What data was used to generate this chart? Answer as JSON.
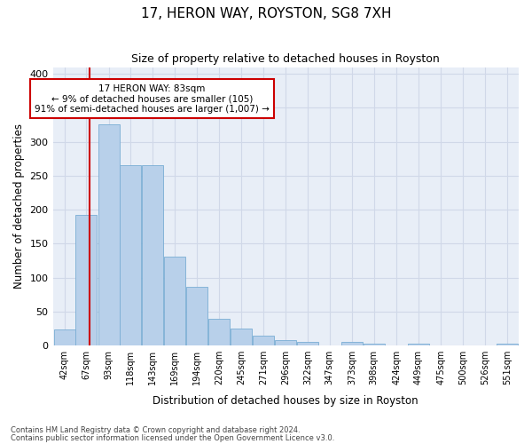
{
  "title": "17, HERON WAY, ROYSTON, SG8 7XH",
  "subtitle": "Size of property relative to detached houses in Royston",
  "xlabel": "Distribution of detached houses by size in Royston",
  "ylabel": "Number of detached properties",
  "bins": [
    42,
    67,
    93,
    118,
    143,
    169,
    194,
    220,
    245,
    271,
    296,
    322,
    347,
    373,
    398,
    424,
    449,
    475,
    500,
    526,
    551
  ],
  "counts": [
    24,
    193,
    326,
    265,
    265,
    131,
    87,
    39,
    25,
    15,
    8,
    5,
    0,
    5,
    3,
    0,
    3,
    0,
    0,
    0,
    3
  ],
  "bar_color": "#b8d0ea",
  "bar_edge_color": "#7aadd4",
  "vline_x": 83,
  "vline_color": "#cc0000",
  "annotation_text": "17 HERON WAY: 83sqm\n← 9% of detached houses are smaller (105)\n91% of semi-detached houses are larger (1,007) →",
  "annotation_box_color": "#ffffff",
  "annotation_box_edge": "#cc0000",
  "ylim": [
    0,
    410
  ],
  "yticks": [
    0,
    50,
    100,
    150,
    200,
    250,
    300,
    350,
    400
  ],
  "grid_color": "#d0d8e8",
  "bg_color": "#e8eef7",
  "footer1": "Contains HM Land Registry data © Crown copyright and database right 2024.",
  "footer2": "Contains public sector information licensed under the Open Government Licence v3.0."
}
